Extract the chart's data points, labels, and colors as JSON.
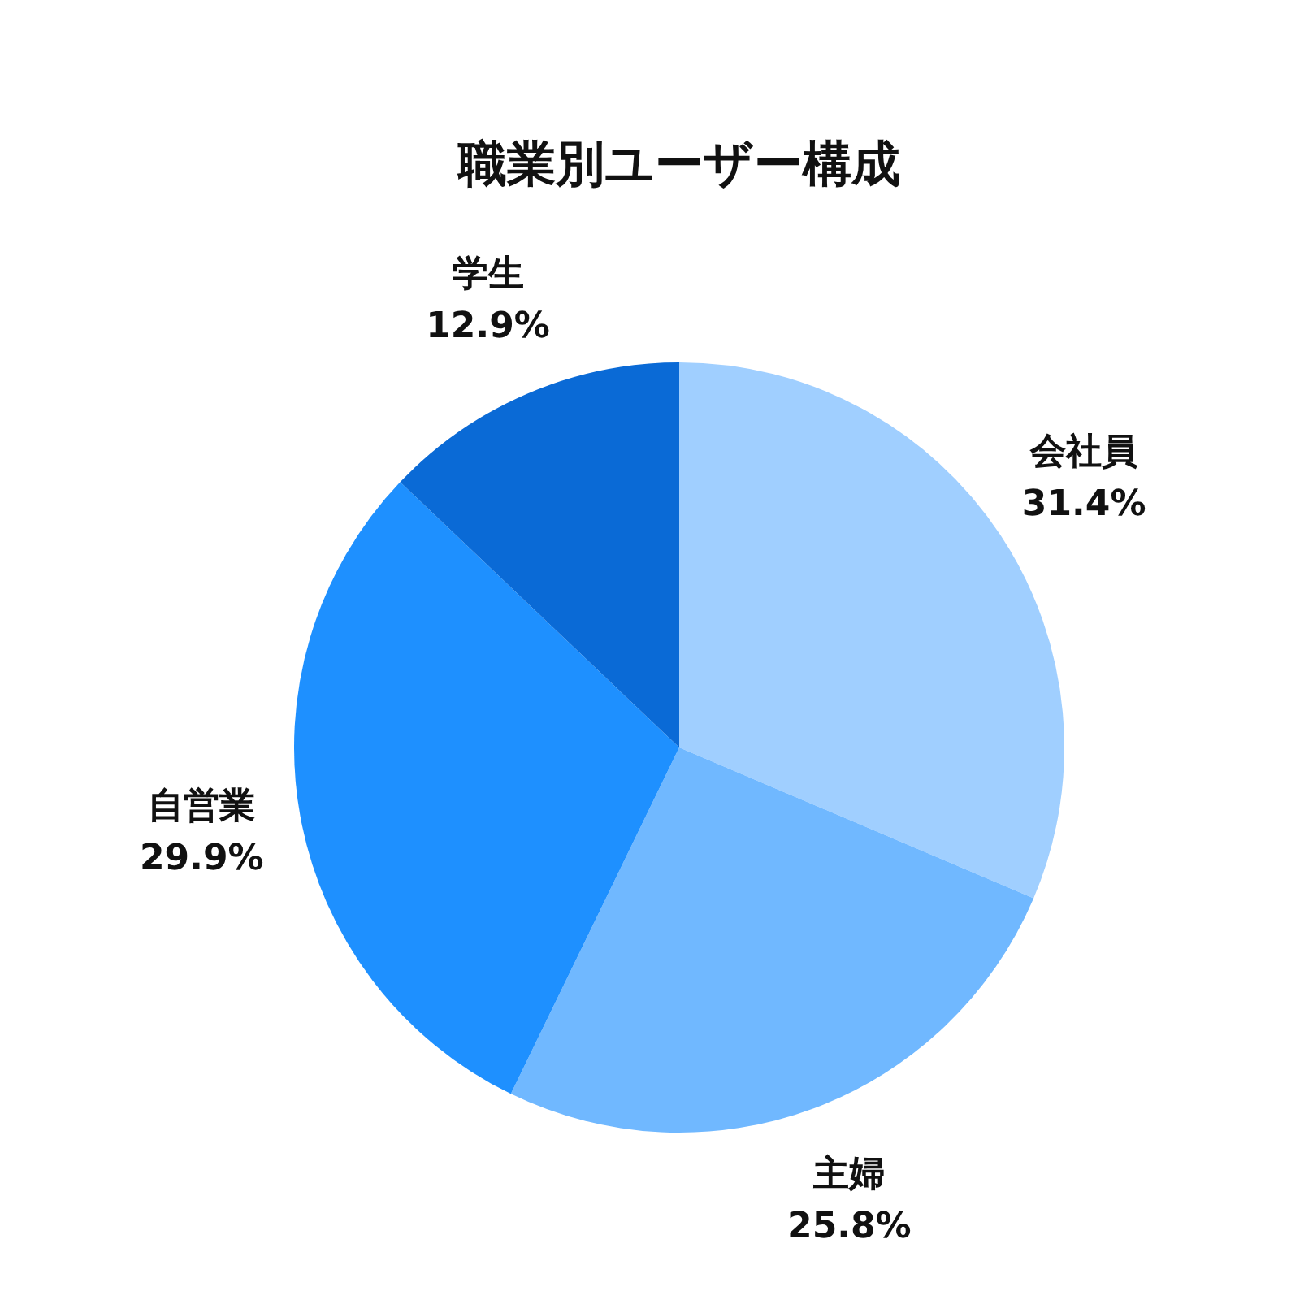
{
  "chart_data": {
    "type": "pie",
    "title": "職業別ユーザー構成",
    "categories": [
      "会社員",
      "主婦",
      "自営業",
      "学生"
    ],
    "values": [
      31.4,
      25.8,
      29.9,
      12.9
    ],
    "colors": [
      "#a0cfff",
      "#70b8ff",
      "#1e90ff",
      "#0a6ad6"
    ],
    "value_labels": [
      "31.4%",
      "25.8%",
      "29.9%",
      "12.9%"
    ],
    "legend": false
  }
}
